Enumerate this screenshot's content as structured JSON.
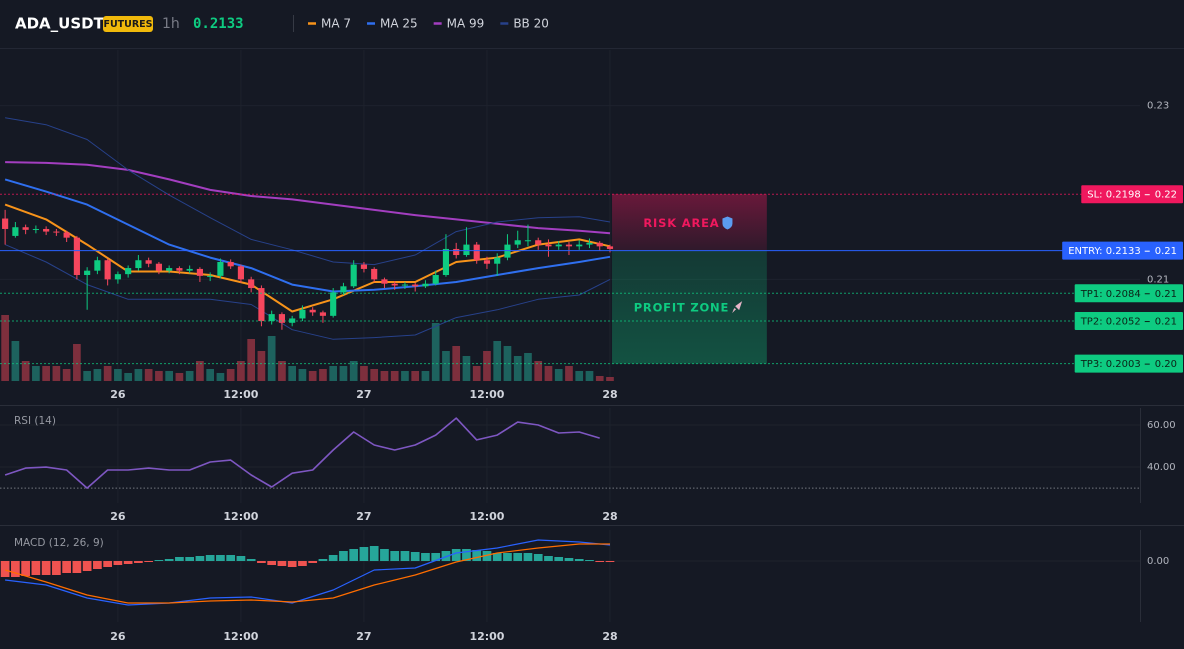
{
  "header": {
    "symbol": "ADA_USDT",
    "badge": "FUTURES",
    "interval": "1h",
    "price": 0.2133
  },
  "chart_data": [
    {
      "type": "candlestick",
      "x": [
        0,
        1,
        2,
        3,
        4,
        5,
        6,
        7,
        8,
        9,
        10,
        11,
        12,
        13,
        14,
        15,
        16,
        17,
        18,
        19,
        20,
        21,
        22,
        23,
        24,
        25,
        26,
        27,
        28,
        29,
        30,
        31,
        32,
        33,
        34,
        35,
        36,
        37,
        38,
        39,
        40,
        41,
        42,
        43,
        44,
        45,
        46,
        47,
        48,
        49,
        50,
        51,
        52,
        53,
        54,
        55,
        56,
        57,
        58,
        59
      ],
      "ohlc": [
        [
          0.217,
          0.218,
          0.214,
          0.2158
        ],
        [
          0.215,
          0.2166,
          0.2148,
          0.216
        ],
        [
          0.216,
          0.2163,
          0.2152,
          0.2157
        ],
        [
          0.2157,
          0.2162,
          0.2153,
          0.2158
        ],
        [
          0.2158,
          0.2161,
          0.2151,
          0.2155
        ],
        [
          0.2155,
          0.2158,
          0.215,
          0.2154
        ],
        [
          0.2154,
          0.2156,
          0.2143,
          0.2148
        ],
        [
          0.2148,
          0.215,
          0.21,
          0.2105
        ],
        [
          0.2105,
          0.2114,
          0.2065,
          0.211
        ],
        [
          0.211,
          0.2126,
          0.2106,
          0.2122
        ],
        [
          0.2122,
          0.2124,
          0.2093,
          0.21
        ],
        [
          0.21,
          0.2109,
          0.2095,
          0.2106
        ],
        [
          0.2106,
          0.2116,
          0.2102,
          0.2113
        ],
        [
          0.2113,
          0.2128,
          0.211,
          0.2122
        ],
        [
          0.2122,
          0.2125,
          0.2114,
          0.2118
        ],
        [
          0.2118,
          0.212,
          0.2106,
          0.211
        ],
        [
          0.211,
          0.2116,
          0.2107,
          0.2113
        ],
        [
          0.2113,
          0.2115,
          0.2106,
          0.211
        ],
        [
          0.211,
          0.2116,
          0.2107,
          0.2112
        ],
        [
          0.2112,
          0.2114,
          0.2097,
          0.2104
        ],
        [
          0.2104,
          0.2108,
          0.2098,
          0.2104
        ],
        [
          0.2104,
          0.2124,
          0.2101,
          0.212
        ],
        [
          0.212,
          0.2123,
          0.2112,
          0.2115
        ],
        [
          0.2115,
          0.2117,
          0.2096,
          0.21
        ],
        [
          0.21,
          0.2103,
          0.2085,
          0.209
        ],
        [
          0.209,
          0.2093,
          0.2046,
          0.2052
        ],
        [
          0.2052,
          0.2064,
          0.2048,
          0.206
        ],
        [
          0.206,
          0.2062,
          0.2042,
          0.205
        ],
        [
          0.205,
          0.2058,
          0.2046,
          0.2055
        ],
        [
          0.2055,
          0.207,
          0.2052,
          0.2065
        ],
        [
          0.2065,
          0.2068,
          0.2058,
          0.2062
        ],
        [
          0.2062,
          0.2064,
          0.205,
          0.2058
        ],
        [
          0.2058,
          0.209,
          0.2056,
          0.2085
        ],
        [
          0.2085,
          0.2096,
          0.2082,
          0.2092
        ],
        [
          0.2092,
          0.2122,
          0.209,
          0.2117
        ],
        [
          0.2117,
          0.212,
          0.2108,
          0.2112
        ],
        [
          0.2112,
          0.2114,
          0.2097,
          0.21
        ],
        [
          0.21,
          0.2102,
          0.209,
          0.2095
        ],
        [
          0.2095,
          0.2098,
          0.2088,
          0.2093
        ],
        [
          0.2093,
          0.2097,
          0.2089,
          0.2094
        ],
        [
          0.2094,
          0.2096,
          0.2086,
          0.2092
        ],
        [
          0.2092,
          0.2099,
          0.209,
          0.2095
        ],
        [
          0.2095,
          0.211,
          0.2093,
          0.2105
        ],
        [
          0.2105,
          0.2152,
          0.2103,
          0.2135
        ],
        [
          0.2135,
          0.2142,
          0.2124,
          0.2128
        ],
        [
          0.2128,
          0.216,
          0.2126,
          0.214
        ],
        [
          0.214,
          0.2143,
          0.2118,
          0.2122
        ],
        [
          0.2122,
          0.2126,
          0.2112,
          0.2118
        ],
        [
          0.2118,
          0.213,
          0.2104,
          0.2125
        ],
        [
          0.2125,
          0.2152,
          0.2122,
          0.214
        ],
        [
          0.214,
          0.2156,
          0.2136,
          0.2145
        ],
        [
          0.2145,
          0.2163,
          0.2138,
          0.2145
        ],
        [
          0.2145,
          0.2148,
          0.2134,
          0.214
        ],
        [
          0.214,
          0.2146,
          0.2126,
          0.2138
        ],
        [
          0.2138,
          0.2144,
          0.2134,
          0.214
        ],
        [
          0.214,
          0.2143,
          0.2128,
          0.2138
        ],
        [
          0.2138,
          0.2145,
          0.2134,
          0.214
        ],
        [
          0.214,
          0.2147,
          0.2136,
          0.2142
        ],
        [
          0.2142,
          0.2144,
          0.2133,
          0.2138
        ],
        [
          0.2138,
          0.214,
          0.2131,
          0.2135
        ]
      ],
      "up_color": "#0ecb81",
      "down_color": "#f6465d",
      "volume": [
        66,
        40,
        20,
        15,
        15,
        15,
        12,
        37,
        10,
        12,
        15,
        12,
        8,
        12,
        12,
        10,
        10,
        8,
        10,
        20,
        12,
        8,
        12,
        20,
        42,
        30,
        45,
        20,
        15,
        12,
        10,
        12,
        15,
        15,
        20,
        15,
        12,
        10,
        10,
        10,
        10,
        10,
        58,
        30,
        35,
        25,
        15,
        30,
        40,
        35,
        25,
        28,
        20,
        15,
        12,
        15,
        10,
        10,
        5,
        4
      ],
      "volume_ylim": [
        0,
        331
      ],
      "volume_colors": {
        "up": "#1d625e",
        "down": "#7d2f3d"
      },
      "series": [
        {
          "name": "MA 7",
          "color": "#f7931a",
          "x": [
            0,
            4,
            8,
            12,
            16,
            20,
            24,
            28,
            32,
            36,
            40,
            44,
            48,
            52,
            56,
            59
          ],
          "values": [
            0.2186,
            0.2169,
            0.214,
            0.2109,
            0.2109,
            0.2105,
            0.2094,
            0.2063,
            0.2077,
            0.2097,
            0.2097,
            0.212,
            0.2125,
            0.214,
            0.2146,
            0.2138
          ]
        },
        {
          "name": "MA 25",
          "color": "#2f6fef",
          "x": [
            0,
            4,
            8,
            12,
            16,
            20,
            24,
            28,
            32,
            36,
            40,
            44,
            48,
            52,
            56,
            59
          ],
          "values": [
            0.2215,
            0.2201,
            0.2186,
            0.2163,
            0.214,
            0.2125,
            0.2113,
            0.2094,
            0.2086,
            0.2088,
            0.2092,
            0.2097,
            0.2105,
            0.2113,
            0.212,
            0.2126
          ]
        },
        {
          "name": "MA 99",
          "color": "#a33ec0",
          "x": [
            0,
            4,
            8,
            12,
            16,
            20,
            24,
            28,
            32,
            36,
            40,
            44,
            48,
            52,
            56,
            59
          ],
          "values": [
            0.2235,
            0.2234,
            0.2232,
            0.2226,
            0.2215,
            0.2203,
            0.2196,
            0.2192,
            0.2186,
            0.218,
            0.2174,
            0.2169,
            0.2164,
            0.2159,
            0.2156,
            0.2153
          ]
        },
        {
          "name": "BB 20",
          "color": "#27418a",
          "x": [
            0,
            4,
            8,
            12,
            16,
            20,
            24,
            28,
            32,
            36,
            40,
            44,
            48,
            52,
            56,
            59
          ],
          "upper": [
            0.2286,
            0.2278,
            0.2261,
            0.2226,
            0.2197,
            0.2171,
            0.2146,
            0.2134,
            0.212,
            0.2117,
            0.2128,
            0.2155,
            0.2166,
            0.2171,
            0.2172,
            0.2166
          ],
          "lower": [
            0.214,
            0.212,
            0.2094,
            0.2077,
            0.2077,
            0.2077,
            0.2071,
            0.2042,
            0.2031,
            0.2033,
            0.2036,
            0.2056,
            0.2065,
            0.2077,
            0.2082,
            0.21
          ]
        }
      ],
      "xlim": [
        -0.5,
        110.7
      ],
      "xticks": [
        {
          "value": 11,
          "label": "26"
        },
        {
          "value": 23,
          "label": "12:00"
        },
        {
          "value": 35,
          "label": "27"
        },
        {
          "value": 47,
          "label": "12:00"
        },
        {
          "value": 59,
          "label": "28"
        }
      ],
      "ylim": [
        0.1983,
        0.2364
      ],
      "yticks": [
        0.21,
        0.23
      ],
      "levels": [
        {
          "label": "SL: 0.2198",
          "value": 0.2198,
          "tag": "0.22",
          "color": "#f0185e",
          "text_color": "#ffffff",
          "style": "dotted"
        },
        {
          "label": "ENTRY: 0.2133",
          "value": 0.2133,
          "tag": "0.21",
          "color": "#2962ff",
          "text_color": "#ffffff",
          "style": "solid"
        },
        {
          "label": "TP1: 0.2084",
          "value": 0.2084,
          "tag": "0.21",
          "color": "#0ecb81",
          "text_color": "#0b2418",
          "style": "dotted"
        },
        {
          "label": "TP2: 0.2052",
          "value": 0.2052,
          "tag": "0.21",
          "color": "#0ecb81",
          "text_color": "#0b2418",
          "style": "dotted"
        },
        {
          "label": "TP3: 0.2003",
          "value": 0.2003,
          "tag": "0.20",
          "color": "#0ecb81",
          "text_color": "#0b2418",
          "style": "dotted"
        }
      ],
      "zones": [
        {
          "label": "RISK AREA",
          "ylim": [
            0.2133,
            0.2198
          ],
          "xlim": [
            59.2,
            74.3
          ],
          "color": "#f0185e",
          "icon": "shield"
        },
        {
          "label": "PROFIT ZONE",
          "ylim": [
            0.2003,
            0.2133
          ],
          "xlim": [
            59.2,
            74.3
          ],
          "color": "#0ecb81",
          "icon": "rocket"
        }
      ]
    },
    {
      "type": "line",
      "title": "RSI (14)",
      "series": [
        {
          "color": "#7e57c2",
          "x": [
            0,
            2,
            4,
            6,
            8,
            10,
            12,
            14,
            16,
            18,
            20,
            22,
            24,
            26,
            28,
            30,
            32,
            34,
            36,
            38,
            40,
            42,
            44,
            46,
            48,
            50,
            52,
            54,
            56,
            58
          ],
          "values": [
            36.2,
            39.5,
            40,
            38.6,
            30,
            38.6,
            38.6,
            39.5,
            38.6,
            38.6,
            42.4,
            43.3,
            36.2,
            30.5,
            37.1,
            38.6,
            48.1,
            56.7,
            50.5,
            48.1,
            50.5,
            55.2,
            63.3,
            52.9,
            55.2,
            61.4,
            60,
            56.2,
            56.7,
            53.8
          ]
        }
      ],
      "levels": [
        30
      ],
      "xlim": [
        -0.5,
        110.7
      ],
      "xticks": [
        {
          "value": 11,
          "label": "26"
        },
        {
          "value": 23,
          "label": "12:00"
        },
        {
          "value": 35,
          "label": "27"
        },
        {
          "value": 47,
          "label": "12:00"
        },
        {
          "value": 59,
          "label": "28"
        }
      ],
      "ylim": [
        22.9,
        68.1
      ],
      "yticks": [
        {
          "value": 60,
          "label": "60.00"
        },
        {
          "value": 40,
          "label": "40.00"
        }
      ]
    },
    {
      "type": "macd",
      "title": "MACD (12, 26, 9)",
      "x": [
        0,
        1,
        2,
        3,
        4,
        5,
        6,
        7,
        8,
        9,
        10,
        11,
        12,
        13,
        14,
        15,
        16,
        17,
        18,
        19,
        20,
        21,
        22,
        23,
        24,
        25,
        26,
        27,
        28,
        29,
        30,
        31,
        32,
        33,
        34,
        35,
        36,
        37,
        38,
        39,
        40,
        41,
        42,
        43,
        44,
        45,
        46,
        47,
        48,
        49,
        50,
        51,
        52,
        53,
        54,
        55,
        56,
        57,
        58,
        59
      ],
      "histogram": [
        -0.0008,
        -0.0008,
        -0.00075,
        -0.0007,
        -0.0007,
        -0.0007,
        -0.0006,
        -0.0006,
        -0.0005,
        -0.0004,
        -0.0003,
        -0.0002,
        -0.00015,
        -0.0001,
        -5e-05,
        5e-05,
        0.0001,
        0.0002,
        0.0002,
        0.00025,
        0.0003,
        0.0003,
        0.0003,
        0.00025,
        0.0001,
        -0.0001,
        -0.0002,
        -0.00025,
        -0.0003,
        -0.00025,
        -0.0001,
        0.0001,
        0.0003,
        0.0005,
        0.0006,
        0.0007,
        0.00075,
        0.0006,
        0.0005,
        0.0005,
        0.00045,
        0.0004,
        0.0004,
        0.0005,
        0.0006,
        0.0006,
        0.00055,
        0.0005,
        0.0004,
        0.0004,
        0.0004,
        0.0004,
        0.00035,
        0.00025,
        0.0002,
        0.00015,
        0.0001,
        5e-05,
        -5e-05,
        -5e-05
      ],
      "hist_colors": {
        "positive": "#26a69a",
        "negative": "#ef5350"
      },
      "series": [
        {
          "color": "#2962ff",
          "x": [
            0,
            4,
            8,
            12,
            16,
            20,
            24,
            28,
            32,
            36,
            40,
            44,
            48,
            52,
            56,
            59
          ],
          "values": [
            -0.00095,
            -0.0012,
            -0.00185,
            -0.0022,
            -0.0021,
            -0.00185,
            -0.0018,
            -0.0021,
            -0.00145,
            -0.00045,
            -0.00035,
            0.0004,
            0.00065,
            0.00105,
            0.00095,
            0.0008
          ]
        },
        {
          "color": "#ff6d00",
          "x": [
            0,
            4,
            8,
            12,
            16,
            20,
            24,
            28,
            32,
            36,
            40,
            44,
            48,
            52,
            56,
            59
          ],
          "values": [
            -0.00045,
            -0.00105,
            -0.0017,
            -0.0021,
            -0.0021,
            -0.002,
            -0.00195,
            -0.00205,
            -0.00185,
            -0.0012,
            -0.0007,
            -5e-05,
            0.0004,
            0.00065,
            0.00085,
            0.00085
          ]
        }
      ],
      "xlim": [
        -0.5,
        110.7
      ],
      "xticks": [
        {
          "value": 11,
          "label": "26"
        },
        {
          "value": 23,
          "label": "12:00"
        },
        {
          "value": 35,
          "label": "27"
        },
        {
          "value": 47,
          "label": "12:00"
        },
        {
          "value": 59,
          "label": "28"
        }
      ],
      "ylim": [
        -0.00305,
        0.00155
      ],
      "yticks": [
        {
          "value": 0,
          "label": "0.00"
        }
      ]
    }
  ]
}
